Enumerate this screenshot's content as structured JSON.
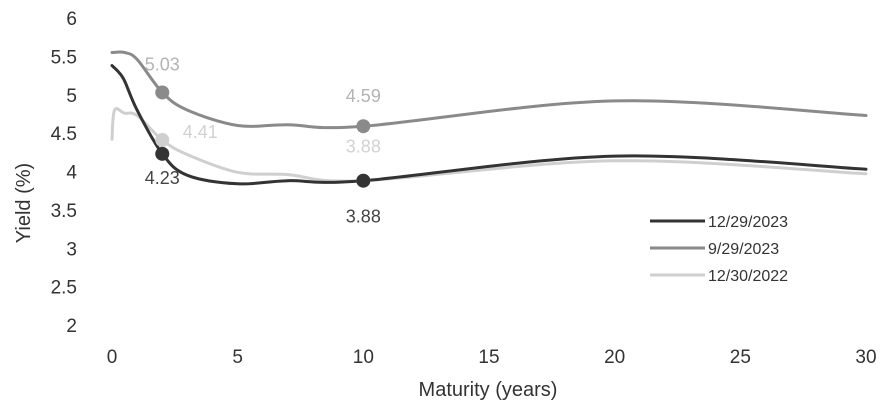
{
  "chart_data": {
    "type": "line",
    "title": "",
    "xlabel": "Maturity (years)",
    "ylabel": "Yield (%)",
    "xlim": [
      0,
      30
    ],
    "ylim": [
      2,
      6
    ],
    "xticks": [
      "0",
      "5",
      "10",
      "15",
      "20",
      "25",
      "30"
    ],
    "yticks": [
      "2",
      "2.5",
      "3",
      "3.5",
      "4",
      "4.5",
      "5",
      "5.5",
      "6"
    ],
    "grid": false,
    "legend_position": "right",
    "series": [
      {
        "name": "12/29/2023",
        "color": "#333333",
        "points": [
          [
            0,
            5.38
          ],
          [
            0.25,
            5.3
          ],
          [
            0.5,
            5.18
          ],
          [
            1,
            4.8
          ],
          [
            2,
            4.23
          ],
          [
            3,
            3.95
          ],
          [
            5,
            3.84
          ],
          [
            7,
            3.88
          ],
          [
            10,
            3.88
          ],
          [
            20,
            4.2
          ],
          [
            30,
            4.03
          ]
        ],
        "markers": [
          {
            "x": 2,
            "y": 4.23,
            "label": "4.23"
          },
          {
            "x": 10,
            "y": 3.88,
            "label": "3.88"
          }
        ]
      },
      {
        "name": "9/29/2023",
        "color": "#8a8a8a",
        "points": [
          [
            0,
            5.55
          ],
          [
            0.5,
            5.55
          ],
          [
            1,
            5.46
          ],
          [
            2,
            5.03
          ],
          [
            3,
            4.8
          ],
          [
            5,
            4.6
          ],
          [
            7,
            4.61
          ],
          [
            10,
            4.59
          ],
          [
            20,
            4.92
          ],
          [
            30,
            4.73
          ]
        ],
        "markers": [
          {
            "x": 2,
            "y": 5.03,
            "label": "5.03"
          },
          {
            "x": 10,
            "y": 4.59,
            "label": "4.59"
          }
        ]
      },
      {
        "name": "12/30/2022",
        "color": "#cfcfcf",
        "points": [
          [
            0,
            4.42
          ],
          [
            0.1,
            4.8
          ],
          [
            0.5,
            4.76
          ],
          [
            1,
            4.73
          ],
          [
            2,
            4.41
          ],
          [
            3,
            4.22
          ],
          [
            5,
            3.99
          ],
          [
            7,
            3.96
          ],
          [
            10,
            3.88
          ],
          [
            20,
            4.14
          ],
          [
            30,
            3.97
          ]
        ],
        "markers": [
          {
            "x": 2,
            "y": 4.41,
            "label": "4.41"
          },
          {
            "x": 10,
            "y": 3.88,
            "label": "3.88"
          }
        ]
      }
    ]
  }
}
